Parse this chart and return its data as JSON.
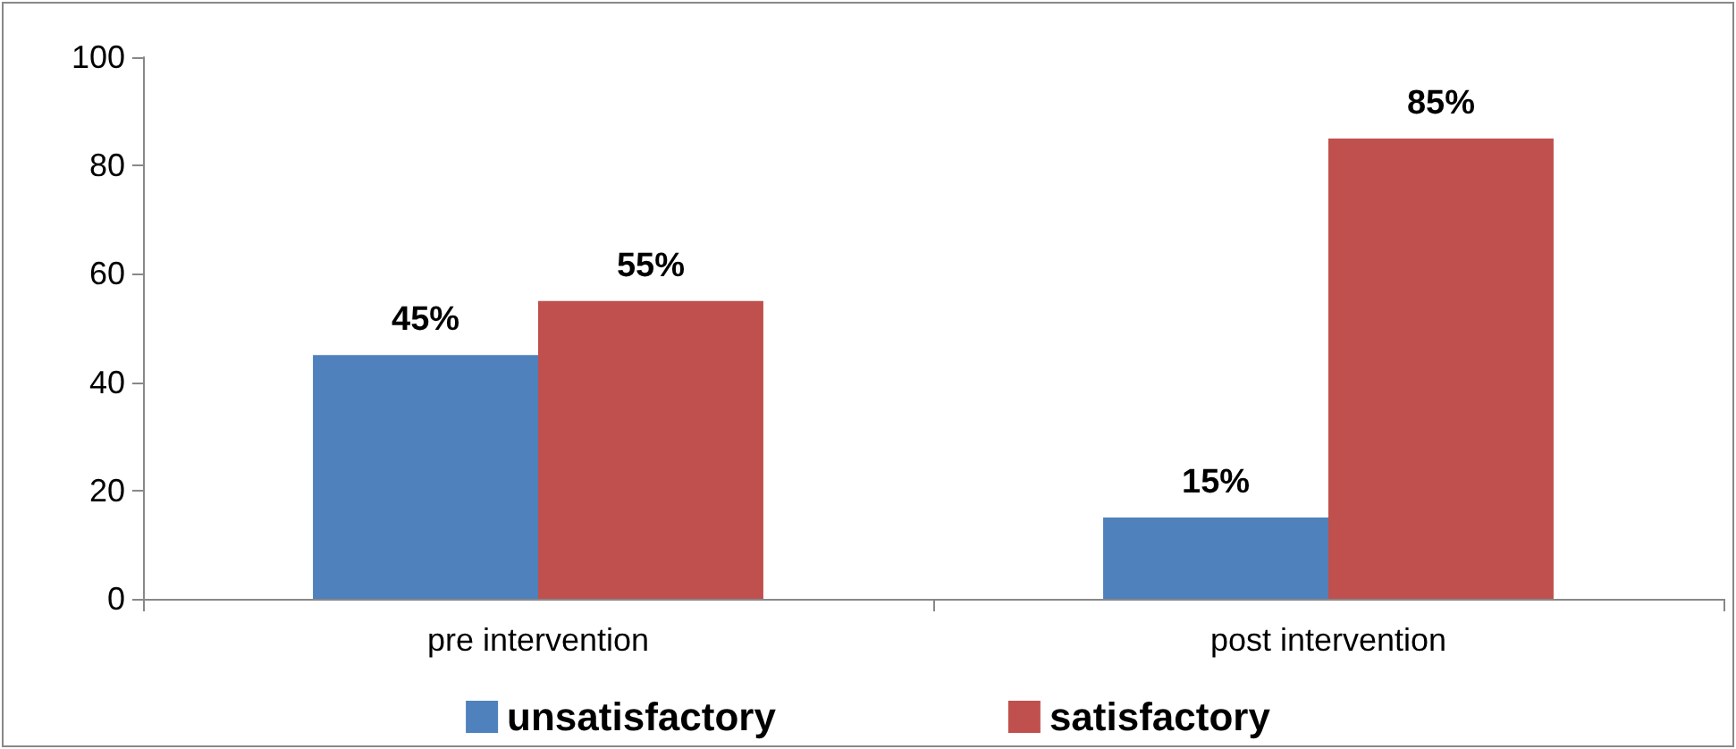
{
  "chart_data": {
    "type": "bar",
    "categories": [
      "pre intervention",
      "post intervention"
    ],
    "series": [
      {
        "name": "unsatisfactory",
        "color": "#4f81bd",
        "values": [
          45,
          15
        ],
        "value_labels": [
          "45%",
          "15%"
        ]
      },
      {
        "name": "satisfactory",
        "color": "#c0504d",
        "values": [
          55,
          85
        ],
        "value_labels": [
          "55%",
          "85%"
        ]
      }
    ],
    "ylim": [
      0,
      100
    ],
    "yticks": [
      0,
      20,
      40,
      60,
      80,
      100
    ],
    "grid": false,
    "legend": "bottom"
  }
}
